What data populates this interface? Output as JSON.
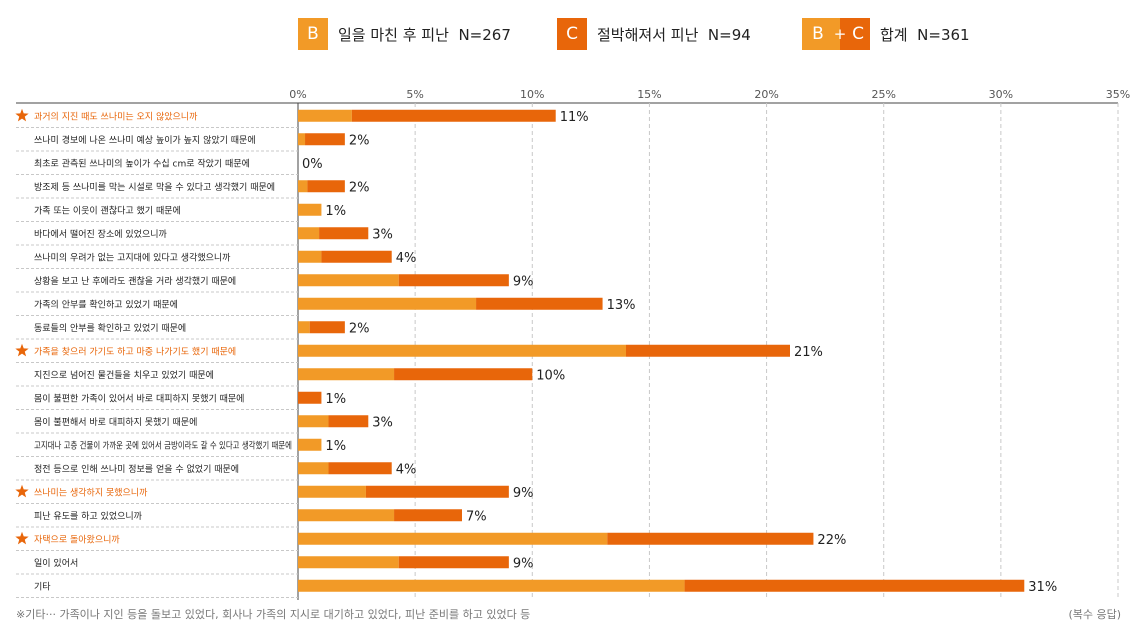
{
  "legend": {
    "b": {
      "mark": "B",
      "label": "일을 마친 후 피난",
      "n": "N=267"
    },
    "c": {
      "mark": "C",
      "label": "절박해져서 피난",
      "n": "N=94"
    },
    "bc": {
      "mark_b": "B",
      "plus": "+",
      "mark_c": "C",
      "label": "합계",
      "n": "N=361"
    }
  },
  "colors": {
    "b": "#f29a27",
    "c": "#e8660a",
    "highlight_text": "#e8660a",
    "star": "#e8660a"
  },
  "chart_data": {
    "type": "bar",
    "orientation": "horizontal",
    "stacked": true,
    "xlim": [
      0,
      35
    ],
    "ticks": [
      "0%",
      "5%",
      "10%",
      "15%",
      "20%",
      "25%",
      "30%",
      "35%"
    ],
    "tick_values": [
      0,
      5,
      10,
      15,
      20,
      25,
      30,
      35
    ],
    "grid": true,
    "categories": [
      "과거의 지진 때도 쓰나미는 오지 않았으니까",
      "쓰나미 경보에 나온 쓰나미 예상 높이가 높지 않았기 때문에",
      "최초로 관측된 쓰나미의 높이가 수십 cm로 작았기 때문에",
      "방조제 등 쓰나미를 막는 시설로 막을 수 있다고 생각했기 때문에",
      "가족 또는 이웃이 괜찮다고 했기 때문에",
      "바다에서 떨어진 장소에 있었으니까",
      "쓰나미의 우려가 없는 고지대에 있다고 생각했으니까",
      "상황을 보고 난 후에라도 괜찮을 거라 생각했기 때문에",
      "가족의 안부를 확인하고 있었기 때문에",
      "동료들의 안부를 확인하고 있었기 때문에",
      "가족을 찾으러 가기도 하고 마중 나가기도 했기 때문에",
      "지진으로 넘어진 물건들을 치우고 있었기 때문에",
      "몸이 불편한 가족이 있어서 바로 대피하지 못했기 때문에",
      "몸이 불편해서 바로 대피하지 못했기 때문에",
      "고지대나 고층 건물이 가까운 곳에 있어서 금방이라도 갈 수 있다고 생각했기 때문에",
      "정전 등으로 인해 쓰나미 정보를 얻을 수 없었기 때문에",
      "쓰나미는 생각하지 못했으니까",
      "피난 유도를 하고 있었으니까",
      "자택으로 돌아왔으니까",
      "일이 있어서",
      "기타"
    ],
    "highlighted": [
      true,
      false,
      false,
      false,
      false,
      false,
      false,
      false,
      false,
      false,
      true,
      false,
      false,
      false,
      false,
      false,
      true,
      false,
      true,
      false,
      false
    ],
    "series": [
      {
        "name": "B",
        "values": [
          2.3,
          0.3,
          0,
          0.4,
          1,
          0.9,
          1,
          4.3,
          7.6,
          0.5,
          14,
          4.1,
          0,
          1.3,
          1,
          1.3,
          2.9,
          4.1,
          13.2,
          4.3,
          16.5
        ]
      },
      {
        "name": "C",
        "values": [
          8.7,
          1.7,
          0,
          1.6,
          0,
          2.1,
          3,
          4.7,
          5.4,
          1.5,
          7,
          5.9,
          1,
          1.7,
          0,
          2.7,
          6.1,
          2.9,
          8.8,
          4.7,
          14.5
        ]
      }
    ],
    "totals": [
      11,
      2,
      0,
      2,
      1,
      3,
      4,
      9,
      13,
      2,
      21,
      10,
      1,
      3,
      1,
      4,
      9,
      7,
      22,
      9,
      31
    ],
    "value_labels": [
      "11%",
      "2%",
      "0%",
      "2%",
      "1%",
      "3%",
      "4%",
      "9%",
      "13%",
      "2%",
      "21%",
      "10%",
      "1%",
      "3%",
      "1%",
      "4%",
      "9%",
      "7%",
      "22%",
      "9%",
      "31%"
    ]
  },
  "footnote": "※기타··· 가족이나 지인 등을 돌보고 있었다, 회사나 가족의 지시로 대기하고 있었다, 피난 준비를 하고 있었다 등",
  "footnote_right": "(복수 응답)"
}
